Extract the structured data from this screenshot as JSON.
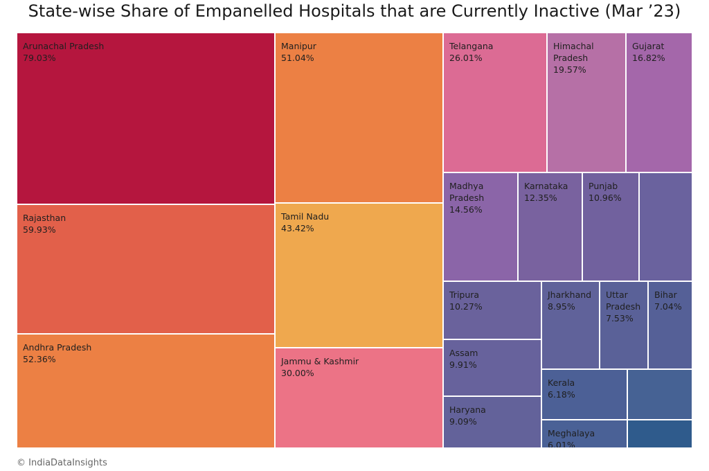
{
  "title": "State-wise Share of Empanelled Hospitals that are Currently Inactive (Mar ’23)",
  "credit": "© IndiaDataInsights",
  "chart_data": {
    "type": "treemap",
    "title": "State-wise Share of Empanelled Hospitals that are Currently Inactive (Mar ’23)",
    "series": [
      {
        "label": "Arunachal Pradesh",
        "value": 79.03,
        "value_label": "79.03%",
        "color": "#b5163e"
      },
      {
        "label": "Rajasthan",
        "value": 59.93,
        "value_label": "59.93%",
        "color": "#e2604a"
      },
      {
        "label": "Andhra Pradesh",
        "value": 52.36,
        "value_label": "52.36%",
        "color": "#ec8044"
      },
      {
        "label": "Manipur",
        "value": 51.04,
        "value_label": "51.04%",
        "color": "#ec8044"
      },
      {
        "label": "Tamil Nadu",
        "value": 43.42,
        "value_label": "43.42%",
        "color": "#efa84e"
      },
      {
        "label": "Jammu & Kashmir",
        "value": 30.0,
        "value_label": "30.00%",
        "color": "#ec7386"
      },
      {
        "label": "Telangana",
        "value": 26.01,
        "value_label": "26.01%",
        "color": "#dc6b94"
      },
      {
        "label": "Himachal\nPradesh",
        "value": 19.57,
        "value_label": "19.57%",
        "color": "#b670a6"
      },
      {
        "label": "Gujarat",
        "value": 16.82,
        "value_label": "16.82%",
        "color": "#a467aa"
      },
      {
        "label": "Madhya\nPradesh",
        "value": 14.56,
        "value_label": "14.56%",
        "color": "#8b65a8"
      },
      {
        "label": "Karnataka",
        "value": 12.35,
        "value_label": "12.35%",
        "color": "#79629f"
      },
      {
        "label": "Punjab",
        "value": 10.96,
        "value_label": "10.96%",
        "color": "#71619e"
      },
      {
        "label": "",
        "value": null,
        "value_label": "",
        "color": "#6a629e"
      },
      {
        "label": "Tripura",
        "value": 10.27,
        "value_label": "10.27%",
        "color": "#6a629c"
      },
      {
        "label": "Assam",
        "value": 9.91,
        "value_label": "9.91%",
        "color": "#67629c"
      },
      {
        "label": "Haryana",
        "value": 9.09,
        "value_label": "9.09%",
        "color": "#63629a"
      },
      {
        "label": "Jharkhand",
        "value": 8.95,
        "value_label": "8.95%",
        "color": "#60629a"
      },
      {
        "label": "Uttar\nPradesh",
        "value": 7.53,
        "value_label": "7.53%",
        "color": "#5a6198"
      },
      {
        "label": "Bihar",
        "value": 7.04,
        "value_label": "7.04%",
        "color": "#556097"
      },
      {
        "label": "Kerala",
        "value": 6.18,
        "value_label": "6.18%",
        "color": "#4c6096"
      },
      {
        "label": "Meghalaya",
        "value": 6.01,
        "value_label": "6.01%",
        "color": "#4a6196"
      },
      {
        "label": "",
        "value": null,
        "value_label": "",
        "color": "#466294"
      },
      {
        "label": "",
        "value": null,
        "value_label": "",
        "color": "#2f5b8c"
      }
    ]
  }
}
